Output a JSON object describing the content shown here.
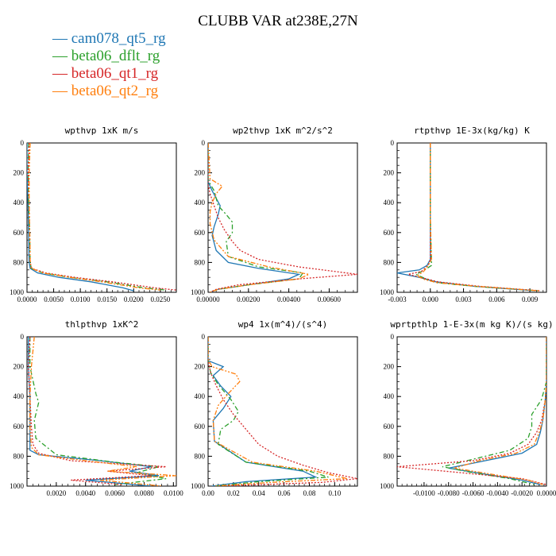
{
  "title": "CLUBB VAR at238E,27N",
  "legend": [
    {
      "name": "cam078_qt5_rg",
      "color": "#1f77b4"
    },
    {
      "name": "beta06_dflt_rg",
      "color": "#2ca02c"
    },
    {
      "name": "beta06_qt1_rg",
      "color": "#d62728"
    },
    {
      "name": "beta06_qt2_rg",
      "color": "#ff7f0e"
    }
  ],
  "chart_data": [
    {
      "type": "line",
      "title": "wpthvp   1xK m/s",
      "xlim": [
        0.0,
        0.028
      ],
      "xticks": [
        0.0,
        0.005,
        0.01,
        0.015,
        0.02,
        0.025
      ],
      "xticklabels": [
        "0.0000",
        "0.0050",
        "0.0100",
        "0.0150",
        "0.0200",
        "0.0250"
      ],
      "ylim": [
        0,
        1000
      ],
      "yticks": [
        0,
        200,
        400,
        600,
        800,
        1000
      ],
      "series": [
        {
          "x": [
            0,
            0,
            0.0002,
            0.0003,
            0.0004,
            0.0006,
            0.002,
            0.006,
            0.012,
            0.018,
            0.02
          ],
          "y": [
            0,
            200,
            400,
            600,
            800,
            840,
            870,
            900,
            930,
            970,
            990
          ]
        },
        {
          "x": [
            0.0003,
            0.0002,
            0.0003,
            0.0005,
            0.0006,
            0.0008,
            0.003,
            0.008,
            0.015,
            0.022,
            0.026
          ],
          "y": [
            0,
            200,
            400,
            600,
            800,
            840,
            870,
            900,
            930,
            970,
            985
          ]
        },
        {
          "x": [
            0.0004,
            0.0002,
            0.0004,
            0.0005,
            0.0006,
            0.0009,
            0.0035,
            0.009,
            0.016,
            0.024,
            0.028
          ],
          "y": [
            0,
            200,
            400,
            600,
            800,
            840,
            870,
            900,
            930,
            970,
            985
          ]
        },
        {
          "x": [
            0.0006,
            0.0004,
            0.0004,
            0.0005,
            0.0006,
            0.0008,
            0.003,
            0.008,
            0.014,
            0.021,
            0.025
          ],
          "y": [
            0,
            200,
            400,
            600,
            800,
            840,
            870,
            900,
            930,
            970,
            985
          ]
        }
      ]
    },
    {
      "type": "line",
      "title": "wp2thvp   1xK m^2/s^2",
      "xlim": [
        0.0,
        0.0074
      ],
      "xticks": [
        0.0,
        0.002,
        0.004,
        0.006
      ],
      "xticklabels": [
        "0.00000",
        "0.00200",
        "0.00400",
        "0.00600"
      ],
      "ylim": [
        0,
        1000
      ],
      "yticks": [
        0,
        200,
        400,
        600,
        800,
        1000
      ],
      "series": [
        {
          "x": [
            0,
            0,
            0.0002,
            0.0006,
            0.0005,
            0.0003,
            0.0002,
            0.0004,
            0.001,
            0.0025,
            0.0045,
            0.004,
            0.002,
            0.0005,
            0.0001
          ],
          "y": [
            0,
            260,
            320,
            420,
            480,
            560,
            620,
            720,
            800,
            840,
            880,
            910,
            950,
            980,
            1000
          ]
        },
        {
          "x": [
            0,
            0,
            0.0003,
            0.0005,
            0.0009,
            0.0012,
            0.0012,
            0.0009,
            0.001,
            0.0025,
            0.0047,
            0.0045,
            0.002,
            0.0005,
            0.0001
          ],
          "y": [
            0,
            250,
            320,
            420,
            480,
            530,
            600,
            660,
            760,
            830,
            870,
            910,
            950,
            980,
            1000
          ]
        },
        {
          "x": [
            0,
            0,
            0.0001,
            0.0003,
            0.0005,
            0.0008,
            0.0012,
            0.0016,
            0.0025,
            0.0045,
            0.0074,
            0.0045,
            0.0015,
            0.0004,
            0.0001
          ],
          "y": [
            0,
            280,
            340,
            420,
            500,
            580,
            660,
            720,
            780,
            830,
            880,
            910,
            950,
            980,
            1000
          ]
        },
        {
          "x": [
            0,
            0.0001,
            0.0007,
            0.0004,
            0.0002,
            0.0001,
            0.0001,
            0.0003,
            0.001,
            0.003,
            0.005,
            0.0045,
            0.002,
            0.0005,
            0.0001
          ],
          "y": [
            0,
            240,
            290,
            340,
            400,
            460,
            540,
            650,
            760,
            830,
            880,
            910,
            950,
            980,
            1000
          ]
        }
      ]
    },
    {
      "type": "line",
      "title": "rtpthvp   1E-3x(kg/kg) K",
      "xlim": [
        -0.003,
        0.0105
      ],
      "xticks": [
        -0.003,
        0.0,
        0.003,
        0.006,
        0.009
      ],
      "xticklabels": [
        "-0.003",
        "0.000",
        "0.003",
        "0.006",
        "0.009"
      ],
      "ylim": [
        0,
        1000
      ],
      "yticks": [
        0,
        200,
        400,
        600,
        800,
        1000
      ],
      "series": [
        {
          "x": [
            0,
            0,
            0,
            -0.0003,
            -0.001,
            -0.003,
            -0.001,
            0.0005,
            0.004,
            0.0095
          ],
          "y": [
            0,
            500,
            780,
            820,
            850,
            870,
            900,
            930,
            960,
            990
          ]
        },
        {
          "x": [
            0,
            0,
            0.0001,
            0.0001,
            -0.0005,
            -0.0013,
            -0.0004,
            0.0005,
            0.004,
            0.0098
          ],
          "y": [
            0,
            500,
            780,
            820,
            850,
            880,
            910,
            935,
            960,
            990
          ]
        },
        {
          "x": [
            0,
            0,
            0,
            -0.0002,
            -0.0008,
            -0.002,
            -0.0006,
            0.0007,
            0.0045,
            0.01
          ],
          "y": [
            0,
            500,
            780,
            820,
            860,
            880,
            905,
            930,
            960,
            990
          ]
        },
        {
          "x": [
            0,
            0,
            0.0001,
            -0.0002,
            -0.0006,
            -0.0012,
            -0.0005,
            0.0006,
            0.0042,
            0.0098
          ],
          "y": [
            0,
            500,
            780,
            820,
            860,
            890,
            915,
            935,
            960,
            990
          ]
        }
      ]
    },
    {
      "type": "line",
      "title": "thlpthvp   1xK^2",
      "xlim": [
        0.0,
        0.0102
      ],
      "xticks": [
        0.002,
        0.004,
        0.006,
        0.008,
        0.01
      ],
      "xticklabels": [
        "0.0020",
        "0.0040",
        "0.0060",
        "0.0080",
        "0.0100"
      ],
      "ylim": [
        0,
        1000
      ],
      "yticks": [
        0,
        200,
        400,
        600,
        800,
        1000
      ],
      "series": [
        {
          "x": [
            0.0001,
            0.0001,
            0.0002,
            0.0002,
            0.0002,
            0.0008,
            0.005,
            0.0085,
            0.007,
            0.009,
            0.004,
            0.0085
          ],
          "y": [
            0,
            200,
            400,
            600,
            760,
            790,
            830,
            870,
            900,
            930,
            960,
            1000
          ]
        },
        {
          "x": [
            0.0002,
            0.0002,
            0.0006,
            0.0008,
            0.0005,
            0.0006,
            0.002,
            0.006,
            0.009,
            0.0075,
            0.0095,
            0.006
          ],
          "y": [
            0,
            200,
            380,
            440,
            560,
            680,
            790,
            840,
            870,
            910,
            950,
            990
          ]
        },
        {
          "x": [
            0.0002,
            0.0001,
            0.0002,
            0.0003,
            0.0004,
            0.0008,
            0.003,
            0.0095,
            0.0055,
            0.0085,
            0.003,
            0.0065
          ],
          "y": [
            0,
            200,
            400,
            600,
            720,
            780,
            830,
            870,
            900,
            930,
            960,
            990
          ]
        },
        {
          "x": [
            0.0005,
            0.0003,
            0.0002,
            0.0002,
            0.0003,
            0.0008,
            0.004,
            0.0075,
            0.0055,
            0.0102,
            0.005,
            0.0092
          ],
          "y": [
            0,
            200,
            400,
            600,
            740,
            790,
            830,
            870,
            900,
            930,
            960,
            1000
          ]
        }
      ]
    },
    {
      "type": "line",
      "title": "wp4   1x(m^4)/(s^4)",
      "xlim": [
        0.0,
        0.118
      ],
      "xticks": [
        0.0,
        0.02,
        0.04,
        0.06,
        0.08,
        0.1
      ],
      "xticklabels": [
        "0.00",
        "0.02",
        "0.04",
        "0.06",
        "0.08",
        "0.10"
      ],
      "ylim": [
        0,
        1000
      ],
      "yticks": [
        0,
        200,
        400,
        600,
        800,
        1000
      ],
      "series": [
        {
          "x": [
            0,
            0,
            0.012,
            0.004,
            0.01,
            0.018,
            0.012,
            0.004,
            0.005,
            0.03,
            0.075,
            0.085,
            0.03,
            0.003
          ],
          "y": [
            0,
            160,
            200,
            260,
            330,
            400,
            480,
            560,
            700,
            840,
            900,
            940,
            970,
            1000
          ]
        },
        {
          "x": [
            0,
            0,
            0.002,
            0.008,
            0.018,
            0.024,
            0.02,
            0.01,
            0.008,
            0.03,
            0.08,
            0.095,
            0.04,
            0.005
          ],
          "y": [
            0,
            160,
            240,
            320,
            420,
            500,
            560,
            620,
            720,
            840,
            900,
            940,
            970,
            1000
          ]
        },
        {
          "x": [
            0,
            0,
            0.002,
            0.006,
            0.012,
            0.02,
            0.03,
            0.04,
            0.055,
            0.075,
            0.095,
            0.118,
            0.09,
            0.01
          ],
          "y": [
            0,
            160,
            240,
            320,
            420,
            520,
            620,
            720,
            800,
            860,
            910,
            950,
            975,
            1000
          ]
        },
        {
          "x": [
            0,
            0,
            0.003,
            0.022,
            0.025,
            0.016,
            0.008,
            0.004,
            0.005,
            0.035,
            0.085,
            0.11,
            0.05,
            0.005
          ],
          "y": [
            0,
            150,
            200,
            250,
            300,
            380,
            460,
            560,
            700,
            840,
            900,
            950,
            975,
            1000
          ]
        }
      ]
    },
    {
      "type": "line",
      "title": "wprtpthlp   1-E-3x(m kg K)/(s kg)",
      "xlim": [
        -0.0122,
        0.0
      ],
      "xticks": [
        -0.01,
        -0.008,
        -0.006,
        -0.004,
        -0.002,
        0.0
      ],
      "xticklabels": [
        "-0.0100",
        "-0.0080",
        "-0.0060",
        "-0.0040",
        "-0.0020",
        "0.0000"
      ],
      "ylim": [
        0,
        1000
      ],
      "yticks": [
        0,
        200,
        400,
        600,
        800,
        1000
      ],
      "series": [
        {
          "x": [
            0,
            0,
            -0.0001,
            -0.0003,
            -0.0005,
            -0.0008,
            -0.002,
            -0.005,
            -0.008,
            -0.005,
            -0.002,
            -0.0005
          ],
          "y": [
            0,
            300,
            420,
            560,
            640,
            720,
            780,
            830,
            880,
            920,
            960,
            990
          ]
        },
        {
          "x": [
            0,
            0,
            -0.0004,
            -0.0012,
            -0.0012,
            -0.0015,
            -0.003,
            -0.006,
            -0.0085,
            -0.006,
            -0.003,
            -0.001
          ],
          "y": [
            0,
            300,
            420,
            520,
            600,
            680,
            760,
            820,
            870,
            910,
            950,
            990
          ]
        },
        {
          "x": [
            0,
            0,
            -0.0001,
            -0.0004,
            -0.0008,
            -0.0015,
            -0.003,
            -0.006,
            -0.0122,
            -0.007,
            -0.002,
            0
          ],
          "y": [
            0,
            300,
            420,
            560,
            640,
            720,
            780,
            830,
            870,
            910,
            950,
            990
          ]
        },
        {
          "x": [
            0,
            0,
            -0.0001,
            -0.0003,
            -0.0006,
            -0.001,
            -0.0025,
            -0.0055,
            -0.0075,
            -0.0045,
            -0.0015,
            -0.0003
          ],
          "y": [
            0,
            300,
            420,
            560,
            640,
            720,
            780,
            830,
            880,
            920,
            960,
            990
          ]
        }
      ]
    }
  ]
}
